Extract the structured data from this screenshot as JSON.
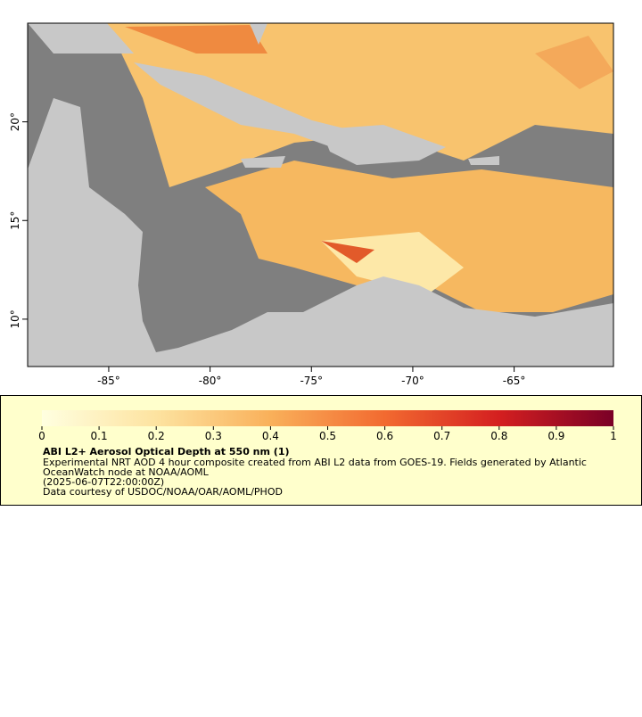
{
  "map": {
    "xlim": [
      -89,
      -60.1
    ],
    "ylim": [
      7.6,
      25
    ],
    "xticks": [
      {
        "value": -85,
        "label": "-85°"
      },
      {
        "value": -80,
        "label": "-80°"
      },
      {
        "value": -75,
        "label": "-75°"
      },
      {
        "value": -70,
        "label": "-70°"
      },
      {
        "value": -65,
        "label": "-65°"
      }
    ],
    "yticks": [
      {
        "value": 10,
        "label": "10°"
      },
      {
        "value": 15,
        "label": "15°"
      },
      {
        "value": 20,
        "label": "20°"
      }
    ]
  },
  "colorbar": {
    "lim": [
      0,
      1
    ],
    "ticks": [
      0,
      0.1,
      0.2,
      0.3,
      0.4,
      0.5,
      0.6,
      0.7,
      0.8,
      0.9,
      1
    ]
  },
  "legend": {
    "title": "ABI L2+ Aerosol Optical Depth at 550 nm (1)",
    "lines": [
      "Experimental NRT AOD 4 hour composite created from ABI L2 data from GOES-19. Fields generated by Atlantic",
      "OceanWatch node at NOAA/AOML",
      "(2025-06-07T22:00:00Z)",
      "Data courtesy of USDOC/NOAA/OAR/AOML/PHOD"
    ]
  }
}
